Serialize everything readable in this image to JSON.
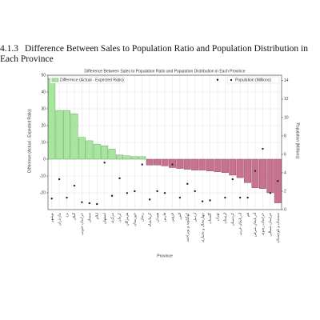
{
  "heading": {
    "number": "4.1.3",
    "title": "Difference Between Sales to Population Ratio and Population Distribution in Each Province"
  },
  "chart_data": {
    "type": "bar",
    "title": "Difference Between Sales to Population Ratio and Population Distribution in Each Province",
    "x_label": "Province",
    "y_label": "Difference (Actual - Expected Ratio)",
    "y2_label": "Population (Millions)",
    "categories": [
      "بوشهر",
      "مازندران",
      "یزد",
      "گیلان",
      "خراسان جنوبی",
      "سمنان",
      "ایلام",
      "اصفهان",
      "مرکزی",
      "کرمان",
      "هرمزگان",
      "خوزستان",
      "زنجان",
      "کرمانشاه",
      "همدان",
      "فارس",
      "قزوین",
      "البرز",
      "کهگیلویه و بویراحمد",
      "اردبیل",
      "چهارمحال و بختیاری",
      "گلستان",
      "تهران",
      "لرستان",
      "کردستان",
      "آذربایجان غربی",
      "قم",
      "آذربایجان شرقی",
      "خراسان رضوی",
      "خراسان شمالی",
      "سیستان و بلوچستان"
    ],
    "series": [
      {
        "name": "Difference (Actual - Expected Ratio)",
        "positive_color": "#a8e6a0",
        "negative_color": "#c8738e",
        "values": [
          48,
          29,
          29,
          27,
          13,
          11,
          9,
          8,
          6,
          2.5,
          2,
          1.5,
          1.5,
          -3.5,
          -3.5,
          -4,
          -5,
          -5.5,
          -6,
          -6.5,
          -6.5,
          -7,
          -7.5,
          -8,
          -9.5,
          -11,
          -14,
          -17,
          -17.5,
          -20,
          -26
        ]
      },
      {
        "name": "Population (Millions)",
        "color": "#222222",
        "axis": "y2",
        "values": [
          1.2,
          3.3,
          1.3,
          2.6,
          0.8,
          0.7,
          0.6,
          5.1,
          1.5,
          3.4,
          1.8,
          2.0,
          4.9,
          1.1,
          2.0,
          1.8,
          4.9,
          1.3,
          2.8,
          2.0,
          0.9,
          1.0,
          14.1,
          1.3,
          3.3,
          1.3,
          1.3,
          4.2,
          6.6,
          1.8,
          3.1
        ]
      }
    ],
    "ylim": [
      -30,
      50
    ],
    "yticks": [
      -20,
      -10,
      0,
      10,
      20,
      30,
      40,
      50
    ],
    "y2lim": [
      0,
      14.6
    ],
    "y2ticks": [
      0,
      2,
      4,
      6,
      8,
      10,
      12,
      14
    ],
    "grid": true,
    "legend": "upper left",
    "legend2": "upper right"
  }
}
